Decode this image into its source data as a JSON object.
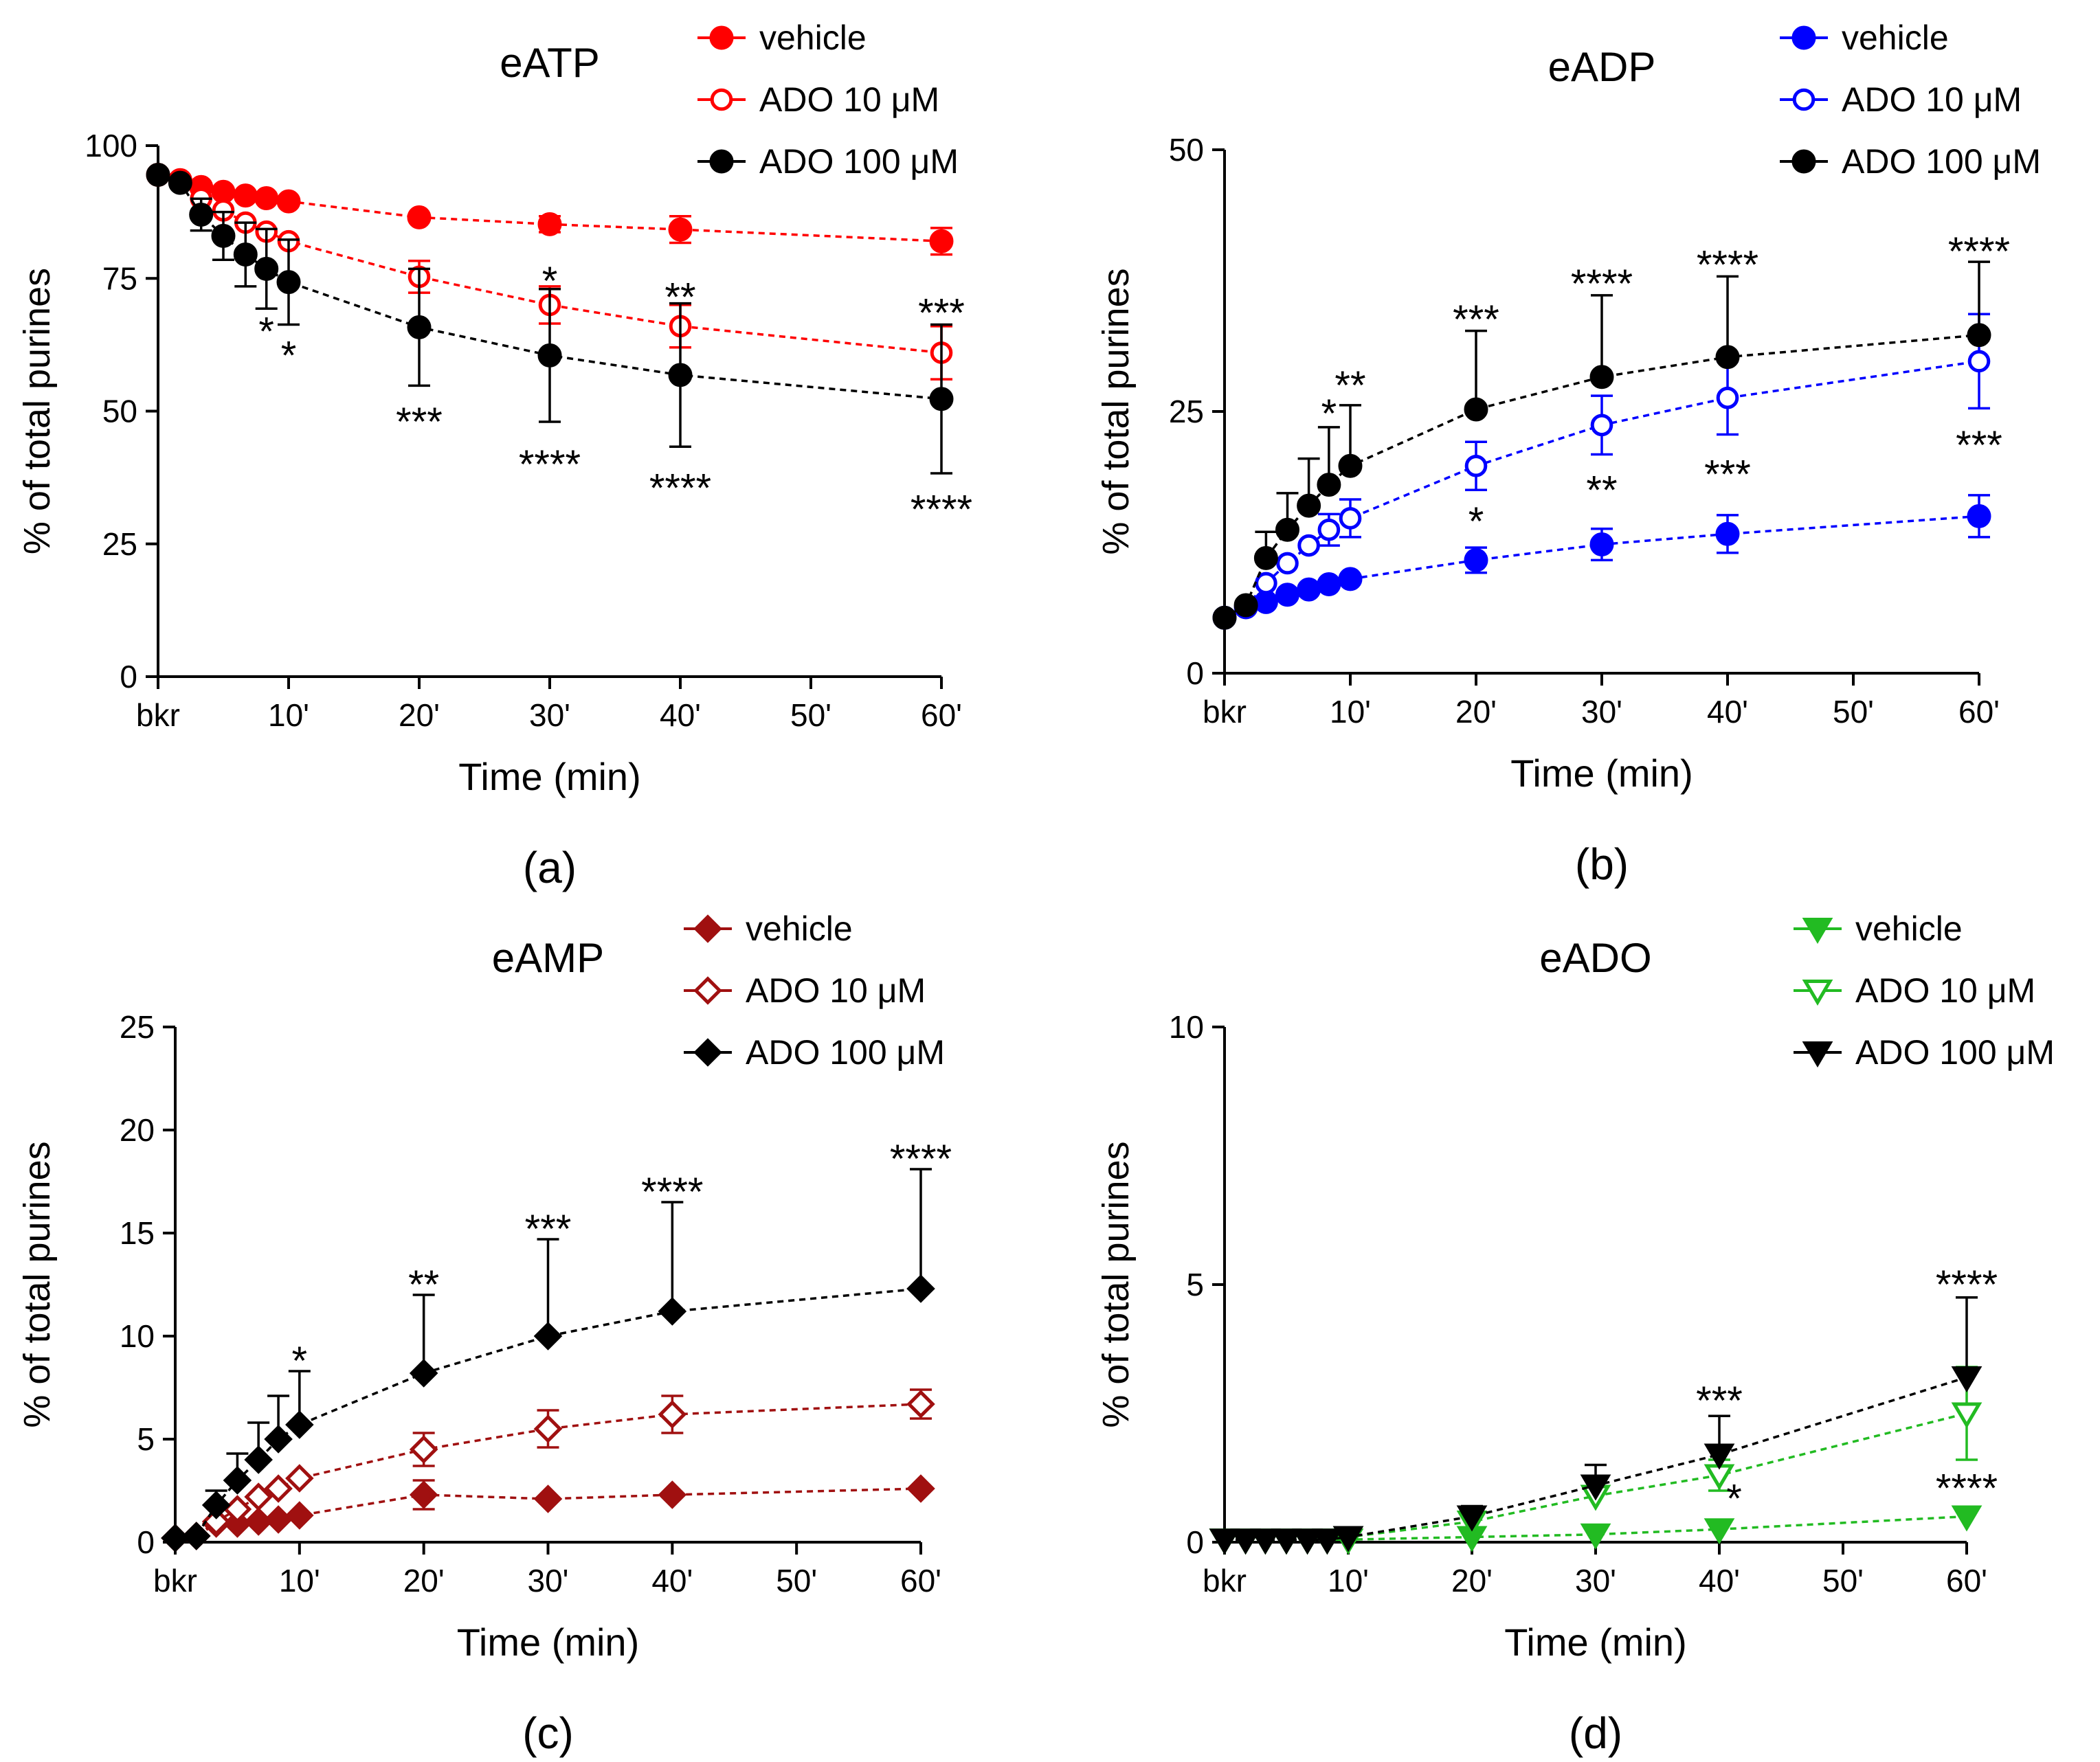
{
  "chart_data": [
    {
      "type": "line",
      "panel_label": "(a)",
      "title": "eATP",
      "xlabel": "Time (min)",
      "ylabel": "% of total purines",
      "ylim": [
        0,
        100
      ],
      "yticks": [
        0,
        25,
        50,
        75,
        100
      ],
      "xticks": [
        {
          "x": 0,
          "label": "bkr"
        },
        {
          "x": 10,
          "label": "10'"
        },
        {
          "x": 20,
          "label": "20'"
        },
        {
          "x": 30,
          "label": "30'"
        },
        {
          "x": 40,
          "label": "40'"
        },
        {
          "x": 50,
          "label": "50'"
        },
        {
          "x": 60,
          "label": "60'"
        }
      ],
      "color": "#ff0000",
      "marker": "circle",
      "series": [
        {
          "name": "vehicle",
          "style": "filled",
          "x": [
            0,
            1.7,
            3.3,
            5,
            6.7,
            8.3,
            10,
            20,
            30,
            40,
            60
          ],
          "y": [
            94.5,
            93.5,
            92.2,
            91.3,
            90.6,
            90.1,
            89.5,
            86.5,
            85.2,
            84.2,
            82.0
          ],
          "err": [
            0,
            0,
            0,
            0,
            0,
            0,
            0,
            0,
            1.5,
            2.5,
            2.5
          ]
        },
        {
          "name": "ADO 10 μM",
          "style": "open",
          "x": [
            0,
            1.7,
            3.3,
            5,
            6.7,
            8.3,
            10,
            20,
            30,
            40,
            60
          ],
          "y": [
            94.5,
            93.5,
            90.0,
            87.8,
            85.5,
            83.8,
            82.0,
            75.3,
            70.0,
            66.0,
            61.0
          ],
          "err": [
            0,
            0,
            0,
            0,
            0,
            0,
            0,
            3,
            3.5,
            4,
            5
          ]
        },
        {
          "name": "ADO 100 μM",
          "style": "black",
          "x": [
            0,
            1.7,
            3.3,
            5,
            6.7,
            8.3,
            10,
            20,
            30,
            40,
            60
          ],
          "y": [
            94.5,
            93.0,
            87.0,
            83.0,
            79.5,
            76.8,
            74.3,
            65.8,
            60.5,
            56.8,
            52.3
          ],
          "err": [
            0,
            0,
            3,
            4.5,
            6,
            7.5,
            8,
            11,
            12.5,
            13.5,
            14
          ]
        }
      ],
      "annotations": [
        {
          "text": "*",
          "x": 8.3,
          "y": 65
        },
        {
          "text": "*",
          "x": 10,
          "y": 60.5
        },
        {
          "text": "***",
          "x": 20,
          "y": 48
        },
        {
          "text": "****",
          "x": 30,
          "y": 40
        },
        {
          "text": "****",
          "x": 40,
          "y": 35.5
        },
        {
          "text": "****",
          "x": 60,
          "y": 31.5
        },
        {
          "text": "*",
          "x": 30,
          "y": 74.5
        },
        {
          "text": "**",
          "x": 40,
          "y": 71.5
        },
        {
          "text": "***",
          "x": 60,
          "y": 68.5
        }
      ]
    },
    {
      "type": "line",
      "panel_label": "(b)",
      "title": "eADP",
      "xlabel": "Time (min)",
      "ylabel": "% of total purines",
      "ylim": [
        0,
        50
      ],
      "yticks": [
        0,
        25,
        50
      ],
      "xticks": [
        {
          "x": 0,
          "label": "bkr"
        },
        {
          "x": 10,
          "label": "10'"
        },
        {
          "x": 20,
          "label": "20'"
        },
        {
          "x": 30,
          "label": "30'"
        },
        {
          "x": 40,
          "label": "40'"
        },
        {
          "x": 50,
          "label": "50'"
        },
        {
          "x": 60,
          "label": "60'"
        }
      ],
      "color": "#0000ff",
      "marker": "circle",
      "series": [
        {
          "name": "vehicle",
          "style": "filled",
          "x": [
            0,
            1.7,
            3.3,
            5,
            6.7,
            8.3,
            10,
            20,
            30,
            40,
            60
          ],
          "y": [
            5.3,
            6.3,
            6.8,
            7.5,
            8.0,
            8.5,
            9.0,
            10.8,
            12.3,
            13.3,
            15.0
          ],
          "err": [
            0,
            0,
            0,
            0,
            0,
            0,
            0,
            1.2,
            1.5,
            1.8,
            2
          ]
        },
        {
          "name": "ADO 10 μM",
          "style": "open",
          "x": [
            0,
            1.7,
            3.3,
            5,
            6.7,
            8.3,
            10,
            20,
            30,
            40,
            60
          ],
          "y": [
            5.3,
            6.3,
            8.6,
            10.5,
            12.2,
            13.7,
            14.8,
            19.8,
            23.7,
            26.3,
            29.8
          ],
          "err": [
            0,
            0,
            0,
            0,
            0,
            1.5,
            1.8,
            2.3,
            2.8,
            3.5,
            4.5
          ]
        },
        {
          "name": "ADO 100 μM",
          "style": "black",
          "x": [
            0,
            1.7,
            3.3,
            5,
            6.7,
            8.3,
            10,
            20,
            30,
            40,
            60
          ],
          "y": [
            5.3,
            6.5,
            11.0,
            13.7,
            16.0,
            18.0,
            19.8,
            25.2,
            28.3,
            30.2,
            32.3
          ],
          "err": [
            0,
            0,
            2.5,
            3.5,
            4.5,
            5.5,
            5.8,
            7.5,
            7.8,
            7.7,
            7
          ]
        }
      ],
      "annotations": [
        {
          "text": "*",
          "x": 8.3,
          "y": 24.8
        },
        {
          "text": "**",
          "x": 10,
          "y": 27.5
        },
        {
          "text": "***",
          "x": 20,
          "y": 33.8
        },
        {
          "text": "****",
          "x": 30,
          "y": 37.2
        },
        {
          "text": "****",
          "x": 40,
          "y": 39.0
        },
        {
          "text": "****",
          "x": 60,
          "y": 40.3
        },
        {
          "text": "*",
          "x": 20,
          "y": 14.5
        },
        {
          "text": "**",
          "x": 30,
          "y": 17.5
        },
        {
          "text": "***",
          "x": 40,
          "y": 19.0
        },
        {
          "text": "***",
          "x": 60,
          "y": 21.8
        }
      ]
    },
    {
      "type": "line",
      "panel_label": "(c)",
      "title": "eAMP",
      "xlabel": "Time (min)",
      "ylabel": "% of total purines",
      "ylim": [
        0,
        25
      ],
      "yticks": [
        0,
        5,
        10,
        15,
        20,
        25
      ],
      "xticks": [
        {
          "x": 0,
          "label": "bkr"
        },
        {
          "x": 10,
          "label": "10'"
        },
        {
          "x": 20,
          "label": "20'"
        },
        {
          "x": 30,
          "label": "30'"
        },
        {
          "x": 40,
          "label": "40'"
        },
        {
          "x": 50,
          "label": "50'"
        },
        {
          "x": 60,
          "label": "60'"
        }
      ],
      "color": "#a01010",
      "marker": "diamond",
      "series": [
        {
          "name": "vehicle",
          "style": "filled",
          "x": [
            0,
            1.7,
            3.3,
            5,
            6.7,
            8.3,
            10,
            20,
            30,
            40,
            60
          ],
          "y": [
            0.2,
            0.3,
            0.9,
            0.9,
            1.0,
            1.1,
            1.3,
            2.3,
            2.1,
            2.3,
            2.6
          ],
          "err": [
            0,
            0,
            0,
            0,
            0,
            0,
            0,
            0.7,
            0,
            0,
            0
          ]
        },
        {
          "name": "ADO 10 μM",
          "style": "open",
          "x": [
            0,
            1.7,
            3.3,
            5,
            6.7,
            8.3,
            10,
            20,
            30,
            40,
            60
          ],
          "y": [
            0.2,
            0.3,
            1.0,
            1.6,
            2.2,
            2.6,
            3.1,
            4.5,
            5.5,
            6.2,
            6.7
          ],
          "err": [
            0,
            0,
            0,
            0,
            0,
            0,
            0,
            0.8,
            0.9,
            0.9,
            0.7
          ]
        },
        {
          "name": "ADO 100 μM",
          "style": "black",
          "x": [
            0,
            1.7,
            3.3,
            5,
            6.7,
            8.3,
            10,
            20,
            30,
            40,
            60
          ],
          "y": [
            0.2,
            0.3,
            1.8,
            3.0,
            4.0,
            5.0,
            5.7,
            8.2,
            10.0,
            11.2,
            12.3
          ],
          "err": [
            0,
            0,
            0.7,
            1.3,
            1.8,
            2.1,
            2.6,
            3.8,
            4.7,
            5.3,
            5.8
          ]
        }
      ],
      "annotations": [
        {
          "text": "*",
          "x": 10,
          "y": 8.8
        },
        {
          "text": "**",
          "x": 20,
          "y": 12.5
        },
        {
          "text": "***",
          "x": 30,
          "y": 15.2
        },
        {
          "text": "****",
          "x": 40,
          "y": 17.0
        },
        {
          "text": "****",
          "x": 60,
          "y": 18.6
        }
      ]
    },
    {
      "type": "line",
      "panel_label": "(d)",
      "title": "eADO",
      "xlabel": "Time (min)",
      "ylabel": "% of total purines",
      "ylim": [
        0,
        10
      ],
      "yticks": [
        0,
        5,
        10
      ],
      "xticks": [
        {
          "x": 0,
          "label": "bkr"
        },
        {
          "x": 10,
          "label": "10'"
        },
        {
          "x": 20,
          "label": "20'"
        },
        {
          "x": 30,
          "label": "30'"
        },
        {
          "x": 40,
          "label": "40'"
        },
        {
          "x": 50,
          "label": "50'"
        },
        {
          "x": 60,
          "label": "60'"
        }
      ],
      "color": "#22bb22",
      "marker": "triangle-down",
      "series": [
        {
          "name": "vehicle",
          "style": "filled",
          "x": [
            0,
            1.7,
            3.3,
            5,
            6.7,
            8.3,
            10,
            20,
            30,
            40,
            60
          ],
          "y": [
            0.05,
            0.05,
            0.05,
            0.05,
            0.05,
            0.05,
            0.05,
            0.1,
            0.15,
            0.25,
            0.5
          ],
          "err": [
            0,
            0,
            0,
            0,
            0,
            0,
            0,
            0,
            0,
            0,
            0
          ]
        },
        {
          "name": "ADO 10 μM",
          "style": "open",
          "x": [
            0,
            1.7,
            3.3,
            5,
            6.7,
            8.3,
            10,
            20,
            30,
            40,
            60
          ],
          "y": [
            0.05,
            0.05,
            0.05,
            0.05,
            0.05,
            0.05,
            0.1,
            0.4,
            0.9,
            1.3,
            2.5
          ],
          "err": [
            0,
            0,
            0,
            0,
            0,
            0,
            0,
            0,
            0,
            0.3,
            0.9
          ]
        },
        {
          "name": "ADO 100 μM",
          "style": "black",
          "x": [
            0,
            1.7,
            3.3,
            5,
            6.7,
            8.3,
            10,
            20,
            30,
            40,
            60
          ],
          "y": [
            0.05,
            0.05,
            0.05,
            0.05,
            0.05,
            0.05,
            0.1,
            0.5,
            1.1,
            1.7,
            3.2
          ],
          "err": [
            0,
            0,
            0,
            0,
            0,
            0,
            0.1,
            0.2,
            0.4,
            0.75,
            1.55
          ]
        }
      ],
      "annotations": [
        {
          "text": "***",
          "x": 40,
          "y": 2.75
        },
        {
          "text": "*",
          "x": 41.2,
          "y": 0.85
        },
        {
          "text": "****",
          "x": 60,
          "y": 5.0
        },
        {
          "text": "****",
          "x": 60,
          "y": 1.05
        }
      ]
    }
  ]
}
